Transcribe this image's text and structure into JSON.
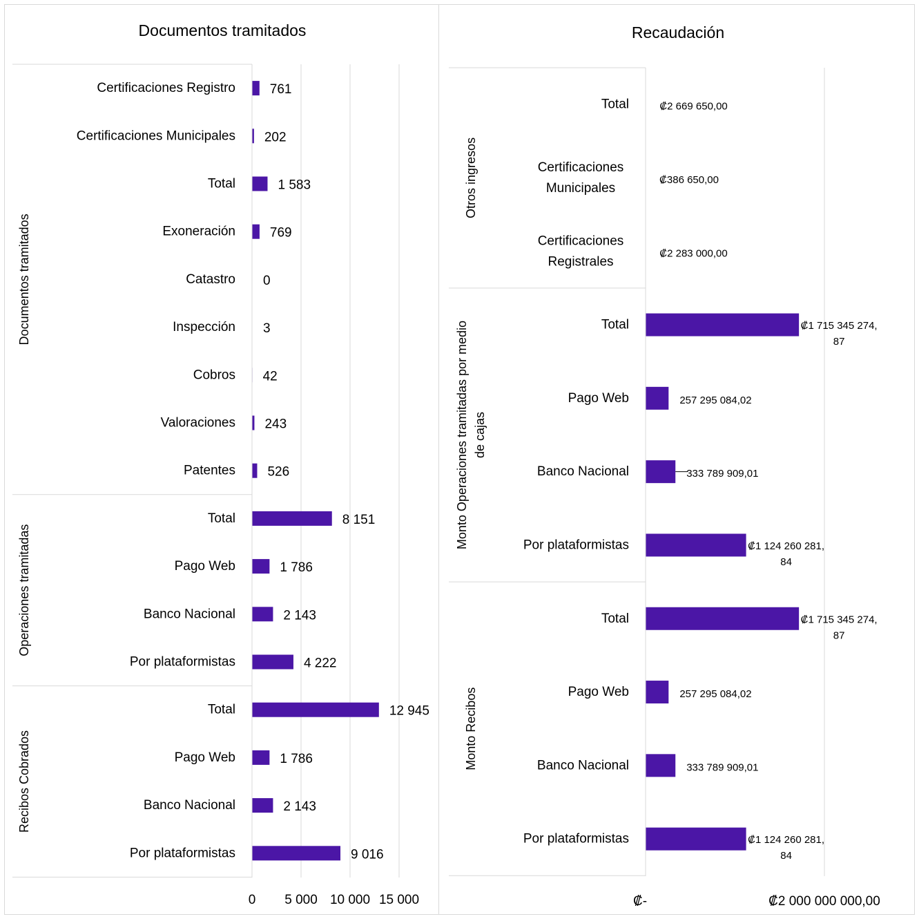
{
  "chart_data": [
    {
      "type": "bar",
      "orientation": "horizontal",
      "title": "Documentos tramitados",
      "bar_color": "#4b16a6",
      "xlim": [
        0,
        15000
      ],
      "x_ticks": [
        "0",
        "5 000",
        "10 000",
        "15 000"
      ],
      "grid": true,
      "legend": "none",
      "groups": [
        {
          "name": "Documentos tramitados",
          "categories": [
            "Certificaciones Registro",
            "Certificaciones Municipales",
            "Total",
            "Exoneración",
            "Catastro",
            "Inspección",
            "Cobros",
            "Valoraciones",
            "Patentes"
          ],
          "values": [
            761,
            202,
            1583,
            769,
            0,
            3,
            42,
            243,
            526
          ],
          "labels": [
            "761",
            "202",
            "1 583",
            "769",
            "0",
            "3",
            "42",
            "243",
            "526"
          ]
        },
        {
          "name": "Operaciones tramitadas",
          "categories": [
            "Total",
            "Pago Web",
            "Banco Nacional",
            "Por plataformistas"
          ],
          "values": [
            8151,
            1786,
            2143,
            4222
          ],
          "labels": [
            "8 151",
            "1 786",
            "2 143",
            "4 222"
          ]
        },
        {
          "name": "Recibos Cobrados",
          "categories": [
            "Total",
            "Pago Web",
            "Banco Nacional",
            "Por plataformistas"
          ],
          "values": [
            12945,
            1786,
            2143,
            9016
          ],
          "labels": [
            "12 945",
            "1 786",
            "2 143",
            "9 016"
          ]
        }
      ]
    },
    {
      "type": "bar",
      "orientation": "horizontal",
      "title": "Recaudación",
      "bar_color": "#4b16a6",
      "xlim": [
        0,
        2000000000
      ],
      "x_ticks": [
        "₡-",
        "₡2 000 000 000,00"
      ],
      "grid": true,
      "legend": "none",
      "groups": [
        {
          "name": [
            "Otros ingresos"
          ],
          "categories": [
            [
              "Total"
            ],
            [
              "Certificaciones",
              "Municipales"
            ],
            [
              "Certificaciones",
              "Registrales"
            ]
          ],
          "values": [
            2669650.0,
            386650.0,
            2283000.0
          ],
          "labels": [
            [
              "₡2 669 650,00"
            ],
            [
              "₡386 650,00"
            ],
            [
              "₡2 283 000,00"
            ]
          ]
        },
        {
          "name": [
            "Monto Operaciones tramitadas  por medio",
            "de cajas"
          ],
          "categories": [
            [
              "Total"
            ],
            [
              "Pago Web"
            ],
            [
              "Banco Nacional"
            ],
            [
              "Por plataformistas"
            ]
          ],
          "values": [
            1715345274.87,
            257295084.02,
            333789909.01,
            1124260281.84
          ],
          "labels": [
            [
              "₡1 715 345 274,",
              "87"
            ],
            [
              "257 295 084,02"
            ],
            [
              "333 789 909,01"
            ],
            [
              "₡1 124 260 281,",
              "84"
            ]
          ]
        },
        {
          "name": [
            "Monto Recibos"
          ],
          "categories": [
            [
              "Total"
            ],
            [
              "Pago Web"
            ],
            [
              "Banco Nacional"
            ],
            [
              "Por plataformistas"
            ]
          ],
          "values": [
            1715345274.87,
            257295084.02,
            333789909.01,
            1124260281.84
          ],
          "labels": [
            [
              "₡1 715 345 274,",
              "87"
            ],
            [
              "257 295 084,02"
            ],
            [
              "333 789 909,01"
            ],
            [
              "₡1 124 260 281,",
              "84"
            ]
          ]
        }
      ]
    }
  ]
}
